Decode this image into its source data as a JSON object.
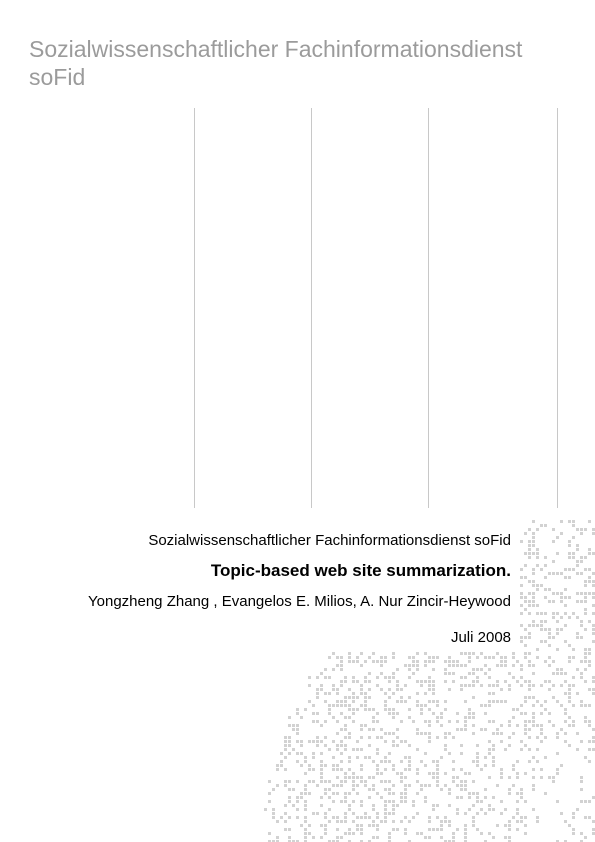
{
  "header": {
    "title_line1": "Sozialwissenschaftlicher Fachinformationsdienst",
    "title_line2": "soFid"
  },
  "document": {
    "journal": "Sozialwissenschaftlicher Fachinformationsdienst soFid",
    "title": "Topic-based web site summarization.",
    "authors": "Yongzheng Zhang , Evangelos E. Milios, A. Nur Zincir-Heywood",
    "date": "Juli 2008"
  },
  "colors": {
    "header_text": "#9b9b9b",
    "rules": "#c8c8c8",
    "dot_pattern": "#d2d2d2"
  }
}
